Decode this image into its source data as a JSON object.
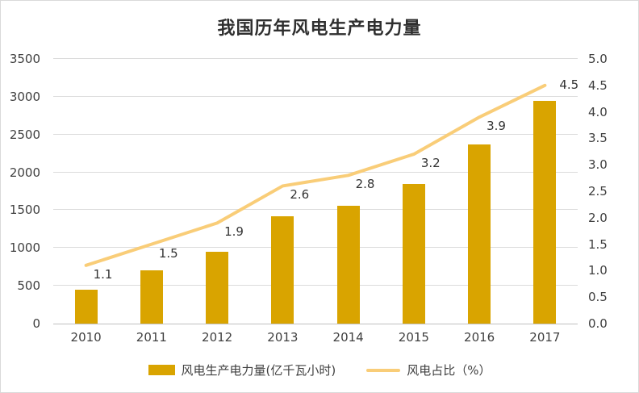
{
  "chart": {
    "title": "我国历年风电生产电力量",
    "legend": {
      "bar_label": "风电生产电力量(亿千瓦小时)",
      "line_label": "风电占比（%）"
    },
    "colors": {
      "bar": "#D9A400",
      "line": "#F9CD78",
      "grid": "#DCDCDC",
      "baseline": "#C0C0C0",
      "text": "#3F3F3F"
    }
  },
  "chart_data": {
    "type": "bar",
    "subtype": "combo-bar-line",
    "title": "我国历年风电生产电力量",
    "categories": [
      "2010",
      "2011",
      "2012",
      "2013",
      "2014",
      "2015",
      "2016",
      "2017"
    ],
    "series": [
      {
        "name": "风电生产电力量(亿千瓦小时)",
        "type": "bar",
        "axis": "left",
        "values": [
          450,
          700,
          950,
          1420,
          1560,
          1850,
          2370,
          2950
        ]
      },
      {
        "name": "风电占比（%）",
        "type": "line",
        "axis": "right",
        "values": [
          1.1,
          1.5,
          1.9,
          2.6,
          2.8,
          3.2,
          3.9,
          4.5
        ],
        "data_labels": [
          "1.1",
          "1.5",
          "1.9",
          "2.6",
          "2.8",
          "3.2",
          "3.9",
          "4.5"
        ]
      }
    ],
    "left_axis": {
      "min": 0,
      "max": 3500,
      "step": 500,
      "ticks": [
        "0",
        "500",
        "1000",
        "1500",
        "2000",
        "2500",
        "3000",
        "3500"
      ]
    },
    "right_axis": {
      "min": 0,
      "max": 5,
      "step": 0.5,
      "ticks": [
        "0.0",
        "0.5",
        "1.0",
        "1.5",
        "2.0",
        "2.5",
        "3.0",
        "3.5",
        "4.0",
        "4.5",
        "5.0"
      ]
    },
    "legend_position": "bottom",
    "grid": true
  }
}
